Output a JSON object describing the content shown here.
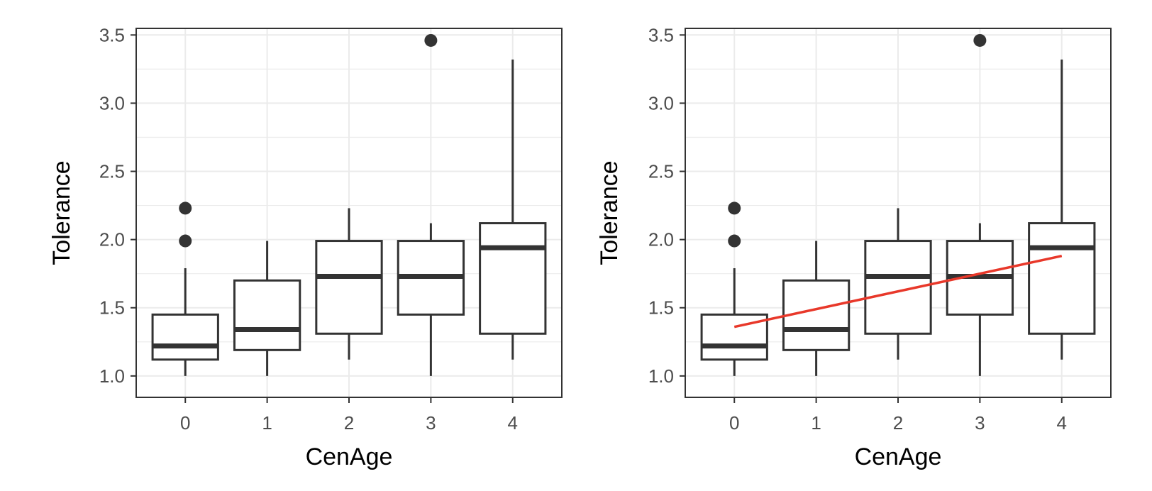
{
  "chart_data": [
    {
      "type": "box",
      "xlabel": "CenAge",
      "ylabel": "Tolerance",
      "categories": [
        "0",
        "1",
        "2",
        "3",
        "4"
      ],
      "ylim": [
        0.89,
        3.59
      ],
      "yticks": [
        1.0,
        1.5,
        2.0,
        2.5,
        3.0,
        3.5
      ],
      "ytick_labels": [
        "1.0",
        "1.5",
        "2.0",
        "2.5",
        "3.0",
        "3.5"
      ],
      "grid": true,
      "boxes": [
        {
          "x": "0",
          "q1": 1.12,
          "median": 1.22,
          "q3": 1.45,
          "whisker_low": 1.0,
          "whisker_high": 1.79,
          "outliers": [
            1.99,
            2.23
          ]
        },
        {
          "x": "1",
          "q1": 1.19,
          "median": 1.34,
          "q3": 1.7,
          "whisker_low": 1.0,
          "whisker_high": 1.99,
          "outliers": []
        },
        {
          "x": "2",
          "q1": 1.31,
          "median": 1.73,
          "q3": 1.99,
          "whisker_low": 1.12,
          "whisker_high": 2.23,
          "outliers": []
        },
        {
          "x": "3",
          "q1": 1.45,
          "median": 1.73,
          "q3": 1.99,
          "whisker_low": 1.0,
          "whisker_high": 2.12,
          "outliers": [
            3.46
          ]
        },
        {
          "x": "4",
          "q1": 1.31,
          "median": 1.94,
          "q3": 2.12,
          "whisker_low": 1.12,
          "whisker_high": 3.32,
          "outliers": []
        }
      ],
      "colors": {
        "box": "#333333",
        "outlier": "#333333",
        "grid": "#ebebeb",
        "border": "#333333"
      }
    },
    {
      "type": "box",
      "xlabel": "CenAge",
      "ylabel": "Tolerance",
      "categories": [
        "0",
        "1",
        "2",
        "3",
        "4"
      ],
      "ylim": [
        0.89,
        3.59
      ],
      "yticks": [
        1.0,
        1.5,
        2.0,
        2.5,
        3.0,
        3.5
      ],
      "ytick_labels": [
        "1.0",
        "1.5",
        "2.0",
        "2.5",
        "3.0",
        "3.5"
      ],
      "grid": true,
      "boxes": [
        {
          "x": "0",
          "q1": 1.12,
          "median": 1.22,
          "q3": 1.45,
          "whisker_low": 1.0,
          "whisker_high": 1.79,
          "outliers": [
            1.99,
            2.23
          ]
        },
        {
          "x": "1",
          "q1": 1.19,
          "median": 1.34,
          "q3": 1.7,
          "whisker_low": 1.0,
          "whisker_high": 1.99,
          "outliers": []
        },
        {
          "x": "2",
          "q1": 1.31,
          "median": 1.73,
          "q3": 1.99,
          "whisker_low": 1.12,
          "whisker_high": 2.23,
          "outliers": []
        },
        {
          "x": "3",
          "q1": 1.45,
          "median": 1.73,
          "q3": 1.99,
          "whisker_low": 1.0,
          "whisker_high": 2.12,
          "outliers": [
            3.46
          ]
        },
        {
          "x": "4",
          "q1": 1.31,
          "median": 1.94,
          "q3": 2.12,
          "whisker_low": 1.12,
          "whisker_high": 3.32,
          "outliers": []
        }
      ],
      "trend_line": {
        "x": [
          0,
          4
        ],
        "y": [
          1.36,
          1.88
        ],
        "color": "#e8382a"
      },
      "colors": {
        "box": "#333333",
        "outlier": "#333333",
        "grid": "#ebebeb",
        "border": "#333333"
      }
    }
  ]
}
